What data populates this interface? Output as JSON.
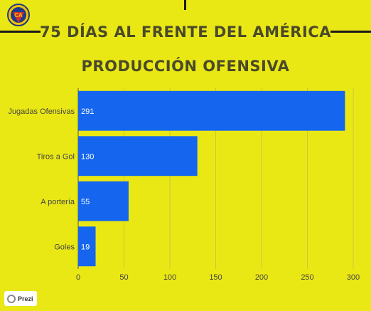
{
  "header": {
    "logo_text": "CA",
    "title_line1": "75 DÍAS  AL FRENTE DEL AMÉRICA",
    "title_line2": "PRODUCCIÓN OFENSIVA"
  },
  "colors": {
    "background": "#eae814",
    "bar": "#1565ef",
    "grid": "#c9c73a",
    "text": "#4a4a2a",
    "logo_blue": "#1f3a8a",
    "logo_red": "#d32f2f",
    "logo_yellow": "#f5c400"
  },
  "chart_data": {
    "type": "bar",
    "orientation": "horizontal",
    "categories": [
      "Jugadas Ofensivas",
      "Tiros a Gol",
      "A portería",
      "Goles"
    ],
    "values": [
      291,
      130,
      55,
      19
    ],
    "xlim": [
      0,
      300
    ],
    "xticks": [
      0,
      50,
      100,
      150,
      200,
      250,
      300
    ],
    "grid": true,
    "data_labels": true
  },
  "footer": {
    "badge_label": "Prezi"
  }
}
